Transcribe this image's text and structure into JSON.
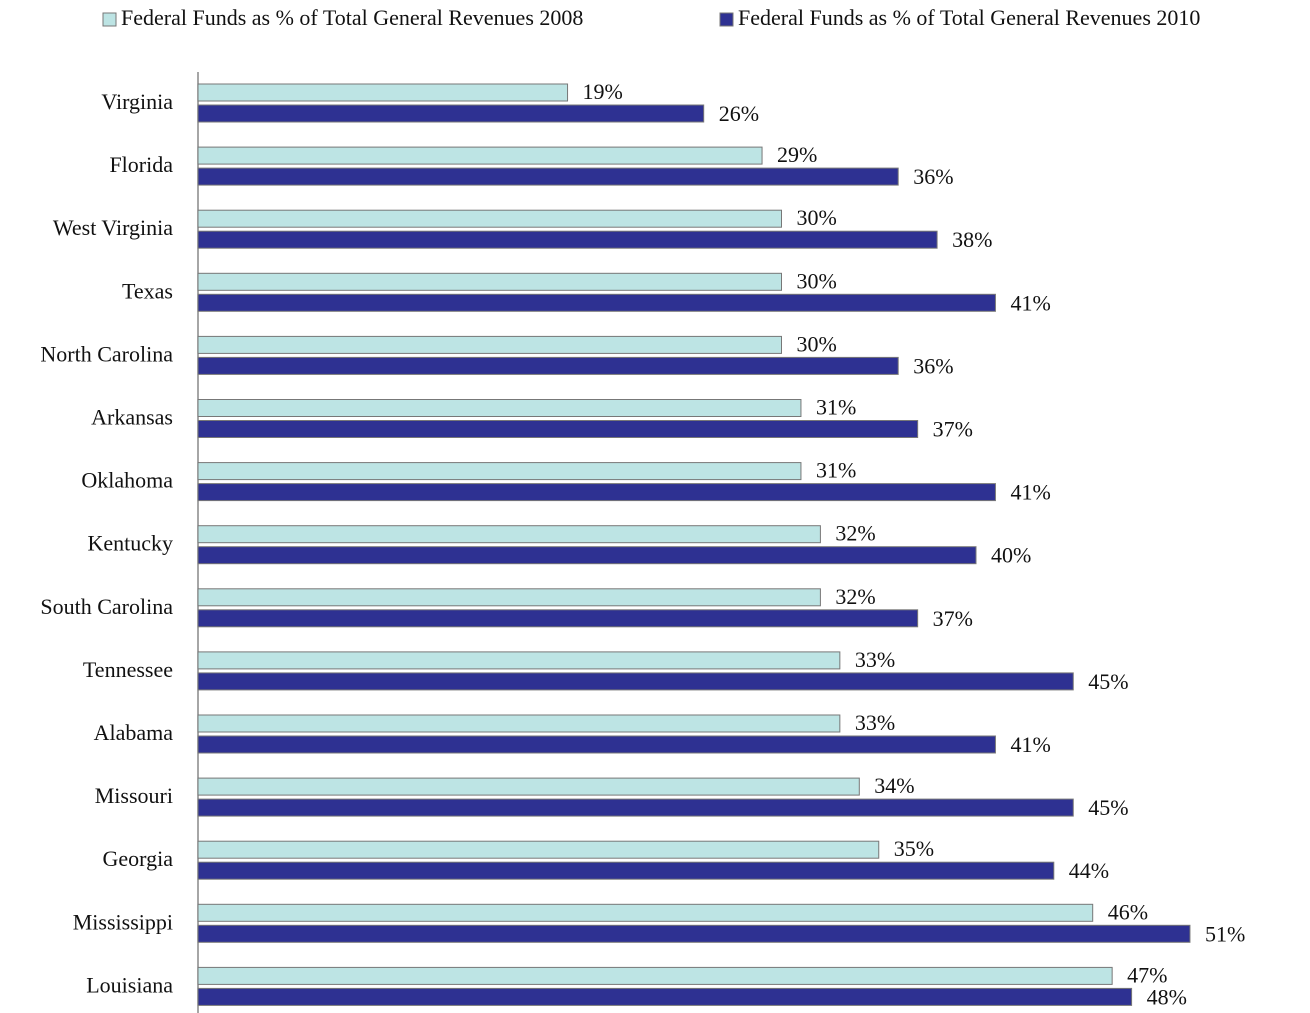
{
  "chart_data": {
    "type": "bar",
    "orientation": "horizontal",
    "categories": [
      "Virginia",
      "Florida",
      "West Virginia",
      "Texas",
      "North Carolina",
      "Arkansas",
      "Oklahoma",
      "Kentucky",
      "South Carolina",
      "Tennessee",
      "Alabama",
      "Missouri",
      "Georgia",
      "Mississippi",
      "Louisiana"
    ],
    "series": [
      {
        "name": "Federal Funds as % of Total General Revenues 2008",
        "color": "#bde4e4",
        "values": [
          19,
          29,
          30,
          30,
          30,
          31,
          31,
          32,
          32,
          33,
          33,
          34,
          35,
          46,
          47
        ],
        "value_labels": [
          "19%",
          "29%",
          "30%",
          "30%",
          "30%",
          "31%",
          "31%",
          "32%",
          "32%",
          "33%",
          "33%",
          "34%",
          "35%",
          "46%",
          "47%"
        ]
      },
      {
        "name": "Federal Funds as % of Total General Revenues 2010",
        "color": "#2e3192",
        "values": [
          26,
          36,
          38,
          41,
          36,
          37,
          41,
          40,
          37,
          45,
          41,
          45,
          44,
          51,
          48
        ],
        "value_labels": [
          "26%",
          "36%",
          "38%",
          "41%",
          "36%",
          "37%",
          "41%",
          "40%",
          "37%",
          "45%",
          "41%",
          "45%",
          "44%",
          "51%",
          "48%"
        ]
      }
    ]
  }
}
